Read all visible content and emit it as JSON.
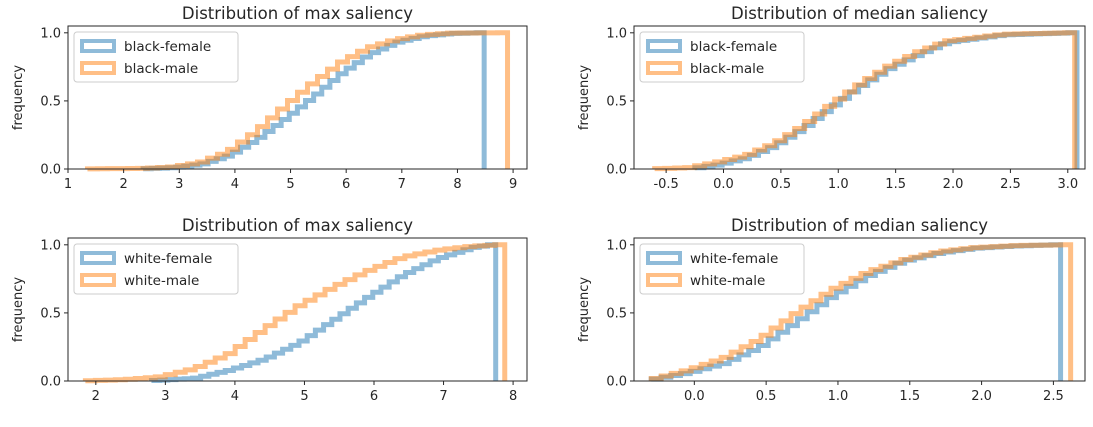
{
  "colors": {
    "blue": "#1f77b4",
    "orange": "#ff7f0e",
    "axis": "#262626",
    "legend_border": "#cccccc"
  },
  "chart_data": [
    {
      "type": "step-histogram",
      "cumulative": true,
      "title": "Distribution of max saliency",
      "ylabel": "frequency",
      "xlim": [
        1,
        9.25
      ],
      "ylim": [
        0,
        1.05
      ],
      "xticks": [
        1,
        2,
        3,
        4,
        5,
        6,
        7,
        8,
        9
      ],
      "xtick_labels": [
        "1",
        "2",
        "3",
        "4",
        "5",
        "6",
        "7",
        "8",
        "9"
      ],
      "yticks": [
        0,
        0.5,
        1
      ],
      "ytick_labels": [
        "0.0",
        "0.5",
        "1.0"
      ],
      "legend_position": "upper-left",
      "series": [
        {
          "name": "black-female",
          "color": "#1f77b4",
          "points": [
            [
              2.35,
              0
            ],
            [
              3.0,
              0.01
            ],
            [
              3.5,
              0.035
            ],
            [
              4.0,
              0.1
            ],
            [
              4.5,
              0.22
            ],
            [
              5.0,
              0.37
            ],
            [
              5.5,
              0.53
            ],
            [
              6.0,
              0.7
            ],
            [
              6.5,
              0.84
            ],
            [
              7.0,
              0.93
            ],
            [
              7.5,
              0.975
            ],
            [
              8.0,
              0.995
            ],
            [
              8.48,
              1.0
            ]
          ]
        },
        {
          "name": "black-male",
          "color": "#ff7f0e",
          "points": [
            [
              1.35,
              0
            ],
            [
              2.5,
              0.005
            ],
            [
              3.0,
              0.015
            ],
            [
              3.5,
              0.05
            ],
            [
              4.0,
              0.13
            ],
            [
              4.5,
              0.28
            ],
            [
              5.0,
              0.46
            ],
            [
              5.5,
              0.63
            ],
            [
              6.0,
              0.78
            ],
            [
              6.5,
              0.89
            ],
            [
              7.0,
              0.95
            ],
            [
              7.5,
              0.985
            ],
            [
              8.0,
              0.998
            ],
            [
              8.9,
              1.0
            ]
          ]
        }
      ]
    },
    {
      "type": "step-histogram",
      "cumulative": true,
      "title": "Distribution of median saliency",
      "ylabel": "frequency",
      "xlim": [
        -0.78,
        3.15
      ],
      "ylim": [
        0,
        1.05
      ],
      "xticks": [
        -0.5,
        0,
        0.5,
        1,
        1.5,
        2,
        2.5,
        3
      ],
      "xtick_labels": [
        "-0.5",
        "0.0",
        "0.5",
        "1.0",
        "1.5",
        "2.0",
        "2.5",
        "3.0"
      ],
      "yticks": [
        0,
        0.5,
        1
      ],
      "ytick_labels": [
        "0.0",
        "0.5",
        "1.0"
      ],
      "legend_position": "upper-left",
      "series": [
        {
          "name": "black-female",
          "color": "#1f77b4",
          "points": [
            [
              -0.25,
              0
            ],
            [
              0.0,
              0.03
            ],
            [
              0.25,
              0.08
            ],
            [
              0.5,
              0.17
            ],
            [
              0.75,
              0.3
            ],
            [
              1.0,
              0.46
            ],
            [
              1.25,
              0.61
            ],
            [
              1.5,
              0.74
            ],
            [
              1.75,
              0.84
            ],
            [
              2.0,
              0.93
            ],
            [
              2.5,
              0.985
            ],
            [
              3.08,
              1.0
            ]
          ]
        },
        {
          "name": "black-male",
          "color": "#ff7f0e",
          "points": [
            [
              -0.6,
              0
            ],
            [
              -0.25,
              0.01
            ],
            [
              0.0,
              0.05
            ],
            [
              0.25,
              0.1
            ],
            [
              0.5,
              0.19
            ],
            [
              0.75,
              0.32
            ],
            [
              1.0,
              0.48
            ],
            [
              1.25,
              0.63
            ],
            [
              1.5,
              0.76
            ],
            [
              1.75,
              0.86
            ],
            [
              2.0,
              0.94
            ],
            [
              2.5,
              0.99
            ],
            [
              3.06,
              1.0
            ]
          ]
        }
      ]
    },
    {
      "type": "step-histogram",
      "cumulative": true,
      "title": "Distribution of max saliency",
      "ylabel": "frequency",
      "xlim": [
        1.6,
        8.2
      ],
      "ylim": [
        0,
        1.05
      ],
      "xticks": [
        2,
        3,
        4,
        5,
        6,
        7,
        8
      ],
      "xtick_labels": [
        "2",
        "3",
        "4",
        "5",
        "6",
        "7",
        "8"
      ],
      "yticks": [
        0,
        0.5,
        1
      ],
      "ytick_labels": [
        "0.0",
        "0.5",
        "1.0"
      ],
      "legend_position": "upper-left",
      "series": [
        {
          "name": "white-female",
          "color": "#1f77b4",
          "points": [
            [
              2.8,
              0
            ],
            [
              3.5,
              0.02
            ],
            [
              4.0,
              0.08
            ],
            [
              4.5,
              0.16
            ],
            [
              5.0,
              0.28
            ],
            [
              5.5,
              0.45
            ],
            [
              6.0,
              0.62
            ],
            [
              6.5,
              0.78
            ],
            [
              7.0,
              0.9
            ],
            [
              7.5,
              0.98
            ],
            [
              7.75,
              1.0
            ]
          ]
        },
        {
          "name": "white-male",
          "color": "#ff7f0e",
          "points": [
            [
              1.85,
              0
            ],
            [
              2.5,
              0.01
            ],
            [
              3.0,
              0.03
            ],
            [
              3.5,
              0.09
            ],
            [
              4.0,
              0.2
            ],
            [
              4.5,
              0.38
            ],
            [
              5.0,
              0.55
            ],
            [
              5.5,
              0.69
            ],
            [
              6.0,
              0.81
            ],
            [
              6.5,
              0.91
            ],
            [
              7.0,
              0.96
            ],
            [
              7.5,
              0.99
            ],
            [
              7.88,
              1.0
            ]
          ]
        }
      ]
    },
    {
      "type": "step-histogram",
      "cumulative": true,
      "title": "Distribution of median saliency",
      "ylabel": "frequency",
      "xlim": [
        -0.42,
        2.72
      ],
      "ylim": [
        0,
        1.05
      ],
      "xticks": [
        0,
        0.5,
        1,
        1.5,
        2,
        2.5
      ],
      "xtick_labels": [
        "0.0",
        "0.5",
        "1.0",
        "1.5",
        "2.0",
        "2.5"
      ],
      "yticks": [
        0,
        0.5,
        1
      ],
      "ytick_labels": [
        "0.0",
        "0.5",
        "1.0"
      ],
      "legend_position": "upper-left",
      "series": [
        {
          "name": "white-female",
          "color": "#1f77b4",
          "points": [
            [
              -0.3,
              0
            ],
            [
              0.0,
              0.06
            ],
            [
              0.25,
              0.13
            ],
            [
              0.5,
              0.25
            ],
            [
              0.75,
              0.43
            ],
            [
              1.0,
              0.62
            ],
            [
              1.25,
              0.77
            ],
            [
              1.5,
              0.88
            ],
            [
              1.75,
              0.94
            ],
            [
              2.0,
              0.975
            ],
            [
              2.25,
              0.99
            ],
            [
              2.55,
              1.0
            ]
          ]
        },
        {
          "name": "white-male",
          "color": "#ff7f0e",
          "points": [
            [
              -0.3,
              0
            ],
            [
              0.0,
              0.08
            ],
            [
              0.25,
              0.17
            ],
            [
              0.5,
              0.31
            ],
            [
              0.75,
              0.5
            ],
            [
              1.0,
              0.67
            ],
            [
              1.25,
              0.8
            ],
            [
              1.5,
              0.89
            ],
            [
              1.75,
              0.95
            ],
            [
              2.0,
              0.98
            ],
            [
              2.3,
              0.995
            ],
            [
              2.62,
              1.0
            ]
          ]
        }
      ]
    }
  ]
}
